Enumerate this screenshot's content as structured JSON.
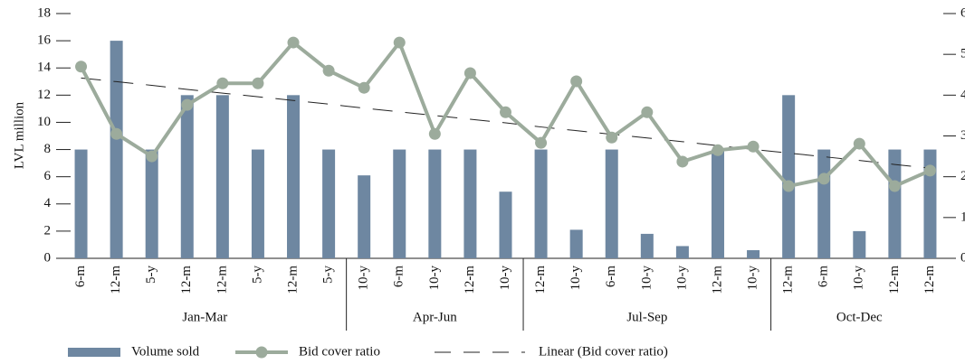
{
  "chart_data": {
    "type": "bar",
    "y_label": "LVL million",
    "groups": [
      {
        "name": "Jan-Mar",
        "categories": [
          "6-m",
          "12-m",
          "5-y",
          "12-m",
          "12-m",
          "5-y",
          "12-m",
          "5-y"
        ]
      },
      {
        "name": "Apr-Jun",
        "categories": [
          "10-y",
          "6-m",
          "10-y",
          "12-m",
          "10-y"
        ]
      },
      {
        "name": "Jul-Sep",
        "categories": [
          "12-m",
          "10-y",
          "6-m",
          "10-y",
          "10-y",
          "12-m",
          "10-y"
        ]
      },
      {
        "name": "Oct-Dec",
        "categories": [
          "12-m",
          "6-m",
          "10-y",
          "12-m",
          "12-m"
        ]
      }
    ],
    "series": [
      {
        "name": "Volume sold",
        "type": "bar",
        "color": "#6e87a1",
        "values": [
          8,
          16,
          8,
          12,
          12,
          8,
          12,
          8,
          6.1,
          8,
          8,
          8,
          4.9,
          8,
          2.1,
          8,
          1.8,
          0.9,
          8,
          0.6,
          12,
          8,
          2,
          8,
          8
        ]
      },
      {
        "name": "Bid cover ratio",
        "type": "line",
        "axis": "y2",
        "color": "#9cab9c",
        "values": [
          4.7,
          3.05,
          2.5,
          3.76,
          4.29,
          4.29,
          5.29,
          4.6,
          4.18,
          5.29,
          3.05,
          4.54,
          3.58,
          2.83,
          4.34,
          2.96,
          3.58,
          2.37,
          2.65,
          2.74,
          1.77,
          1.95,
          2.81,
          1.77,
          2.15
        ]
      },
      {
        "name": "Linear (Bid cover ratio)",
        "type": "dashed",
        "axis": "y2",
        "color": "#222",
        "values": [
          4.42,
          4.33,
          4.24,
          4.14,
          4.05,
          3.96,
          3.87,
          3.78,
          3.68,
          3.59,
          3.5,
          3.41,
          3.32,
          3.22,
          3.13,
          3.04,
          2.95,
          2.86,
          2.76,
          2.67,
          2.58,
          2.49,
          2.4,
          2.3,
          2.21
        ]
      }
    ],
    "ylim": [
      0,
      18
    ],
    "yticks": [
      0,
      2,
      4,
      6,
      8,
      10,
      12,
      14,
      16,
      18
    ],
    "y2lim": [
      0,
      6
    ],
    "y2ticks": [
      0,
      1,
      2,
      3,
      4,
      5,
      6
    ]
  }
}
